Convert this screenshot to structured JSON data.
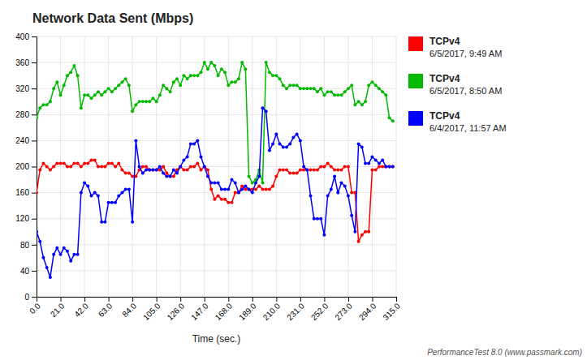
{
  "chart_data": {
    "type": "line",
    "title": "Network Data Sent (Mbps)",
    "x_label": "Time (sec.)",
    "annotations": [
      "PerformanceTest 8.0 (www.passmark.com)"
    ],
    "grid": true,
    "marker": "circle",
    "xlim": [
      0,
      315
    ],
    "ylim": [
      0,
      400
    ],
    "xticks": [
      {
        "value": 0,
        "label": "0.0"
      },
      {
        "value": 21,
        "label": "21.0"
      },
      {
        "value": 42,
        "label": "42.0"
      },
      {
        "value": 63,
        "label": "63.0"
      },
      {
        "value": 84,
        "label": "84.0"
      },
      {
        "value": 105,
        "label": "105.0"
      },
      {
        "value": 126,
        "label": "126.0"
      },
      {
        "value": 147,
        "label": "147.0"
      },
      {
        "value": 168,
        "label": "168.0"
      },
      {
        "value": 189,
        "label": "189.0"
      },
      {
        "value": 210,
        "label": "210.0"
      },
      {
        "value": 231,
        "label": "231.0"
      },
      {
        "value": 252,
        "label": "252.0"
      },
      {
        "value": 273,
        "label": "273.0"
      },
      {
        "value": 294,
        "label": "294.0"
      },
      {
        "value": 315,
        "label": "315.0"
      }
    ],
    "yticks": [
      0,
      40,
      80,
      120,
      160,
      200,
      240,
      280,
      320,
      360,
      400
    ],
    "x": [
      0,
      3,
      6,
      9,
      12,
      15,
      18,
      21,
      24,
      27,
      30,
      33,
      36,
      39,
      42,
      45,
      48,
      51,
      54,
      57,
      60,
      63,
      66,
      69,
      72,
      75,
      78,
      81,
      84,
      87,
      90,
      93,
      96,
      99,
      102,
      105,
      108,
      111,
      114,
      117,
      120,
      123,
      126,
      129,
      132,
      135,
      138,
      141,
      144,
      147,
      150,
      153,
      156,
      159,
      162,
      165,
      168,
      171,
      174,
      177,
      180,
      183,
      186,
      189,
      192,
      195,
      198,
      201,
      204,
      207,
      210,
      213,
      216,
      219,
      222,
      225,
      228,
      231,
      234,
      237,
      240,
      243,
      246,
      249,
      252,
      255,
      258,
      261,
      264,
      267,
      270,
      273,
      276,
      279,
      282,
      285,
      288,
      291,
      294,
      297,
      300,
      303,
      306,
      309,
      312
    ],
    "series": [
      {
        "name": [
          "TCPv4",
          "6/5/2017, 9:49 AM"
        ],
        "color": "#FF0000",
        "values": [
          160,
          195,
          205,
          200,
          195,
          200,
          205,
          205,
          205,
          200,
          200,
          205,
          205,
          200,
          205,
          205,
          210,
          210,
          200,
          200,
          200,
          205,
          205,
          200,
          205,
          195,
          190,
          190,
          185,
          185,
          195,
          200,
          200,
          195,
          195,
          195,
          195,
          200,
          190,
          185,
          185,
          195,
          200,
          195,
          195,
          200,
          200,
          205,
          195,
          200,
          195,
          165,
          150,
          155,
          150,
          150,
          145,
          145,
          160,
          160,
          170,
          165,
          165,
          165,
          165,
          170,
          165,
          165,
          165,
          170,
          185,
          195,
          195,
          195,
          190,
          190,
          190,
          195,
          195,
          195,
          195,
          195,
          195,
          200,
          200,
          205,
          200,
          195,
          195,
          195,
          200,
          200,
          160,
          160,
          85,
          95,
          100,
          100,
          195,
          195,
          200,
          200,
          200,
          200,
          200
        ]
      },
      {
        "name": [
          "TCPv4",
          "6/5/2017, 8:50 AM"
        ],
        "color": "#00BB00",
        "values": [
          275,
          290,
          295,
          295,
          300,
          320,
          330,
          310,
          325,
          340,
          345,
          355,
          340,
          290,
          310,
          310,
          305,
          310,
          315,
          310,
          315,
          320,
          315,
          320,
          325,
          330,
          335,
          325,
          285,
          295,
          300,
          300,
          300,
          300,
          305,
          300,
          310,
          325,
          320,
          315,
          330,
          335,
          325,
          340,
          335,
          340,
          340,
          340,
          345,
          360,
          350,
          360,
          355,
          340,
          350,
          345,
          325,
          330,
          330,
          335,
          360,
          350,
          185,
          175,
          180,
          195,
          175,
          360,
          345,
          340,
          340,
          335,
          325,
          320,
          325,
          325,
          325,
          320,
          320,
          320,
          320,
          320,
          315,
          320,
          310,
          315,
          315,
          310,
          310,
          310,
          315,
          320,
          325,
          295,
          300,
          295,
          300,
          325,
          330,
          325,
          320,
          315,
          310,
          275,
          270
        ]
      },
      {
        "name": [
          "TCPv4",
          "6/4/2017, 11:57 AM"
        ],
        "color": "#0000FF",
        "values": [
          100,
          85,
          60,
          45,
          30,
          65,
          75,
          65,
          75,
          70,
          55,
          65,
          65,
          160,
          175,
          170,
          155,
          160,
          155,
          115,
          115,
          145,
          145,
          145,
          155,
          160,
          165,
          165,
          115,
          240,
          200,
          190,
          195,
          195,
          195,
          195,
          200,
          190,
          185,
          185,
          195,
          190,
          200,
          210,
          215,
          235,
          235,
          240,
          215,
          200,
          185,
          175,
          175,
          175,
          165,
          165,
          165,
          180,
          175,
          160,
          165,
          170,
          165,
          160,
          175,
          185,
          290,
          285,
          225,
          235,
          250,
          235,
          230,
          230,
          235,
          245,
          250,
          240,
          200,
          195,
          155,
          120,
          120,
          120,
          95,
          155,
          165,
          185,
          160,
          175,
          170,
          155,
          125,
          100,
          235,
          230,
          205,
          205,
          215,
          210,
          205,
          210,
          200,
          200,
          200
        ]
      }
    ]
  }
}
